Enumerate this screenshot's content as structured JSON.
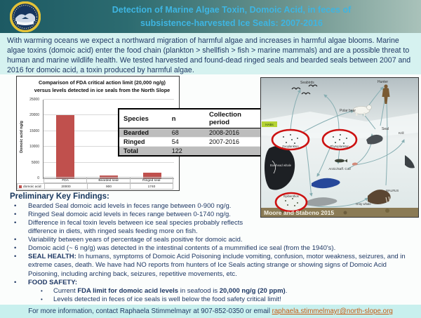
{
  "header": {
    "title_line1": "Detection of Marine Algae Toxin, Domoic Acid, in feces of",
    "title_line2": "subsistence-harvested Ice Seals: 2007-2016",
    "logo": "north-slope-borough-seal"
  },
  "intro": {
    "text": "With warming oceans we expect a northward migration of harmful algae and increases in harmful algae blooms. Marine algae toxins (domoic acid) enter the food chain (plankton > shellfish > fish > marine mammals) and are a possible threat to human and marine wildlife health. We tested harvested and found-dead ringed seals and bearded seals between 2007 and 2016 for domoic acid, a toxin produced by harmful algae."
  },
  "chart_data": {
    "type": "bar",
    "title": "Comparison of  FDA critical action limit (20,000 ng/g) versus levels detected in ice seals from the North Slope",
    "categories": [
      "FDA",
      "Bearded seal",
      "Ringed seal"
    ],
    "values": [
      20000,
      900,
      1740
    ],
    "series_name": "domoic acid",
    "ylabel": "Domoic acid ng/g",
    "xlabel": "",
    "ylim": [
      0,
      25000
    ],
    "yticks": [
      0,
      5000,
      10000,
      15000,
      20000,
      25000
    ],
    "bar_color": "#c0504d",
    "grid": true,
    "legend_position": "bottom-left"
  },
  "species_table": {
    "headers": [
      "Species",
      "n",
      "Collection period"
    ],
    "rows": [
      [
        "Bearded",
        "68",
        "2008-2016"
      ],
      [
        "Ringed",
        "54",
        "2007-2016"
      ],
      [
        "Total",
        "122",
        ""
      ]
    ]
  },
  "foodweb": {
    "labels": [
      "Seabirds",
      "Hunter",
      "Polar bear",
      "Seal",
      "Krill",
      "Arctic/Saff. Cod",
      "Bowhead whale",
      "Gray whale",
      "WALRUS",
      "Zooplankton",
      "Phytoplankton",
      "Epibenthos",
      "HABs"
    ],
    "citation": "Moore and Stabeno 2015",
    "highlight_color": "#cc1111"
  },
  "findings": {
    "heading": "Preliminary Key Findings:",
    "bullets": [
      {
        "level": 1,
        "segments": [
          {
            "text": "Bearded Seal domoic acid levels in feces range between 0-900 ng/g.",
            "bold": false
          }
        ]
      },
      {
        "level": 1,
        "segments": [
          {
            "text": "Ringed Seal domoic acid levels in feces range between 0-1740 ng/g.",
            "bold": false
          }
        ]
      },
      {
        "level": 1,
        "segments": [
          {
            "text": "Difference in fecal toxin levels between ice seal species probably reflects difference in diets, with ringed seals feeding more on fish.",
            "bold": false
          }
        ]
      },
      {
        "level": 1,
        "segments": [
          {
            "text": "Variability between years of percentage of seals positive for domoic acid.",
            "bold": false
          }
        ]
      },
      {
        "level": 1,
        "segments": [
          {
            "text": "Domoic acid  (~ 6 ng/g) was detected in the intestinal contents of a mummified ice seal (from the 1940's).",
            "bold": false
          }
        ]
      },
      {
        "level": 1,
        "segments": [
          {
            "text": "SEAL HEALTH:",
            "bold": true
          },
          {
            "text": "  In humans, symptoms of Domoic Acid Poisoning include vomiting, confusion, motor weakness, seizures, and in extreme cases, death. We have had NO reports from hunters of Ice Seals acting strange or showing signs of Domoic Acid Poisoning, including arching back, seizures, repetitive movements, etc.",
            "bold": false
          }
        ]
      },
      {
        "level": 1,
        "segments": [
          {
            "text": "FOOD SAFETY:",
            "bold": true
          }
        ]
      },
      {
        "level": 2,
        "segments": [
          {
            "text": "Current ",
            "bold": false
          },
          {
            "text": "FDA limit for domoic acid levels",
            "bold": true
          },
          {
            "text": " in seafood is ",
            "bold": false
          },
          {
            "text": "20,000 ng/g (20 ppm)",
            "bold": true
          },
          {
            "text": ".",
            "bold": false
          }
        ]
      },
      {
        "level": 2,
        "segments": [
          {
            "text": "Levels detected in feces of ice seals is well below the food safety critical limit!",
            "bold": false
          }
        ]
      }
    ]
  },
  "footer": {
    "text_before_link": "For more information, contact Raphaela Stimmelmayr at 907-852-0350 or email ",
    "link": "raphaela.stimmelmayr@north-slope.org"
  }
}
